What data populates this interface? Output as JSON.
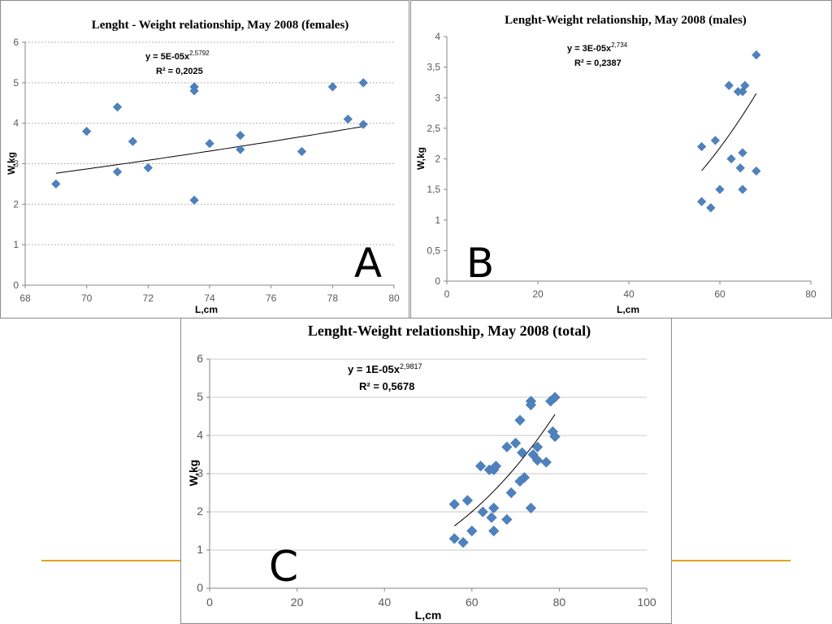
{
  "chart_data": [
    {
      "panel_letter": "A",
      "type": "scatter",
      "title": "Lenght - Weight relationship, May 2008 (females)",
      "xlabel": "L,cm",
      "ylabel": "W,kg",
      "xlim": [
        68,
        80
      ],
      "ylim": [
        0,
        6
      ],
      "xticks": [
        68,
        70,
        72,
        74,
        76,
        78,
        80
      ],
      "yticks": [
        0,
        1,
        2,
        3,
        4,
        5,
        6
      ],
      "grid": "horizontal-dotted",
      "equation_base": "y = 5E-05x",
      "equation_exp": "2,5792",
      "r2": "R² = 0,2025",
      "trend": {
        "type": "power",
        "a": 5e-05,
        "b": 2.5792,
        "x_from": 69,
        "x_to": 79
      },
      "marker_color": "#4f81bd",
      "points": [
        {
          "x": 69,
          "y": 2.5
        },
        {
          "x": 70,
          "y": 3.8
        },
        {
          "x": 71,
          "y": 4.4
        },
        {
          "x": 71,
          "y": 2.8
        },
        {
          "x": 71.5,
          "y": 3.55
        },
        {
          "x": 72,
          "y": 2.9
        },
        {
          "x": 73.5,
          "y": 4.9
        },
        {
          "x": 73.5,
          "y": 4.8
        },
        {
          "x": 73.5,
          "y": 2.1
        },
        {
          "x": 74,
          "y": 3.5
        },
        {
          "x": 75,
          "y": 3.7
        },
        {
          "x": 75,
          "y": 3.35
        },
        {
          "x": 77,
          "y": 3.3
        },
        {
          "x": 78,
          "y": 4.9
        },
        {
          "x": 78.5,
          "y": 4.1
        },
        {
          "x": 79,
          "y": 5.0
        },
        {
          "x": 79,
          "y": 3.97
        }
      ]
    },
    {
      "panel_letter": "B",
      "type": "scatter",
      "title": "Lenght-Weight relationship, May 2008 (males)",
      "xlabel": "L,cm",
      "ylabel": "W,kg",
      "xlim": [
        0,
        80
      ],
      "ylim": [
        0,
        4
      ],
      "xticks": [
        0,
        20,
        40,
        60,
        80
      ],
      "yticks": [
        0,
        0.5,
        1,
        1.5,
        2,
        2.5,
        3,
        3.5,
        4
      ],
      "ytick_labels": [
        "0",
        "0,5",
        "1",
        "1,5",
        "2",
        "2,5",
        "3",
        "3,5",
        "4"
      ],
      "grid": "none",
      "equation_base": "y = 3E-05x",
      "equation_exp": "2,734",
      "r2": "R² = 0,2387",
      "trend": {
        "type": "power",
        "a": 3e-05,
        "b": 2.734,
        "x_from": 56,
        "x_to": 68
      },
      "marker_color": "#4f81bd",
      "points": [
        {
          "x": 56,
          "y": 2.2
        },
        {
          "x": 56,
          "y": 1.3
        },
        {
          "x": 58,
          "y": 1.2
        },
        {
          "x": 59,
          "y": 2.3
        },
        {
          "x": 60,
          "y": 1.5
        },
        {
          "x": 62,
          "y": 3.2
        },
        {
          "x": 62.5,
          "y": 2.0
        },
        {
          "x": 64,
          "y": 3.1
        },
        {
          "x": 64.5,
          "y": 1.85
        },
        {
          "x": 65,
          "y": 3.1
        },
        {
          "x": 65,
          "y": 2.1
        },
        {
          "x": 65,
          "y": 1.5
        },
        {
          "x": 65.5,
          "y": 3.2
        },
        {
          "x": 68,
          "y": 3.7
        },
        {
          "x": 68,
          "y": 1.8
        }
      ]
    },
    {
      "panel_letter": "C",
      "type": "scatter",
      "title": "Lenght-Weight relationship, May 2008 (total)",
      "xlabel": "L,cm",
      "ylabel": "W,kg",
      "xlim": [
        0,
        100
      ],
      "ylim": [
        0,
        6
      ],
      "xticks": [
        0,
        20,
        40,
        60,
        80,
        100
      ],
      "yticks": [
        0,
        1,
        2,
        3,
        4,
        5,
        6
      ],
      "grid": "horizontal-solid",
      "equation_base": "y = 1E-05x",
      "equation_exp": "2,9817",
      "r2": "R² = 0,5678",
      "trend": {
        "type": "power",
        "a": 1e-05,
        "b": 2.9817,
        "x_from": 56,
        "x_to": 79
      },
      "marker_color": "#4f81bd",
      "points": [
        {
          "x": 56,
          "y": 2.2
        },
        {
          "x": 56,
          "y": 1.3
        },
        {
          "x": 58,
          "y": 1.2
        },
        {
          "x": 59,
          "y": 2.3
        },
        {
          "x": 60,
          "y": 1.5
        },
        {
          "x": 62,
          "y": 3.2
        },
        {
          "x": 62.5,
          "y": 2.0
        },
        {
          "x": 64,
          "y": 3.1
        },
        {
          "x": 64.5,
          "y": 1.85
        },
        {
          "x": 65,
          "y": 3.1
        },
        {
          "x": 65,
          "y": 2.1
        },
        {
          "x": 65,
          "y": 1.5
        },
        {
          "x": 65.5,
          "y": 3.2
        },
        {
          "x": 68,
          "y": 3.7
        },
        {
          "x": 68,
          "y": 1.8
        },
        {
          "x": 69,
          "y": 2.5
        },
        {
          "x": 70,
          "y": 3.8
        },
        {
          "x": 71,
          "y": 4.4
        },
        {
          "x": 71,
          "y": 2.8
        },
        {
          "x": 71.5,
          "y": 3.55
        },
        {
          "x": 72,
          "y": 2.9
        },
        {
          "x": 73.5,
          "y": 4.9
        },
        {
          "x": 73.5,
          "y": 4.8
        },
        {
          "x": 73.5,
          "y": 2.1
        },
        {
          "x": 74,
          "y": 3.5
        },
        {
          "x": 75,
          "y": 3.7
        },
        {
          "x": 75,
          "y": 3.35
        },
        {
          "x": 77,
          "y": 3.3
        },
        {
          "x": 78,
          "y": 4.9
        },
        {
          "x": 78.5,
          "y": 4.1
        },
        {
          "x": 79,
          "y": 5.0
        },
        {
          "x": 79,
          "y": 3.97
        }
      ]
    }
  ]
}
